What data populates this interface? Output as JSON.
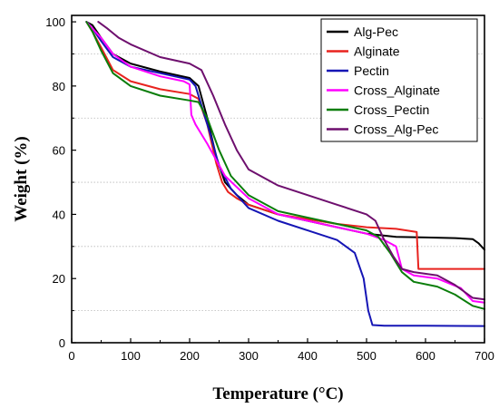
{
  "chart_data": {
    "type": "line",
    "xlabel": "Temperature (°C)",
    "ylabel": "Weight (%)",
    "xlim": [
      0,
      700
    ],
    "ylim": [
      0,
      102
    ],
    "xticks": [
      0,
      100,
      200,
      300,
      400,
      500,
      600,
      700
    ],
    "yticks": [
      0,
      20,
      40,
      60,
      80,
      100
    ],
    "dotted_gridlines_y": [
      10,
      30,
      50,
      70,
      90
    ],
    "legend_position": "top-right",
    "series": [
      {
        "name": "Alg-Pec",
        "color": "#000000",
        "x": [
          25,
          35,
          50,
          70,
          100,
          150,
          200,
          215,
          230,
          245,
          260,
          280,
          300,
          350,
          400,
          450,
          500,
          550,
          600,
          650,
          680,
          690,
          700
        ],
        "y": [
          100,
          99,
          95,
          90,
          87,
          84.5,
          82.5,
          80,
          70,
          58,
          50,
          46,
          43,
          40,
          38,
          36,
          34,
          33,
          32.8,
          32.6,
          32.3,
          31,
          29
        ]
      },
      {
        "name": "Alginate",
        "color": "#e8231f",
        "x": [
          25,
          35,
          50,
          70,
          100,
          150,
          200,
          215,
          230,
          245,
          255,
          265,
          280,
          300,
          350,
          400,
          450,
          500,
          550,
          585,
          588,
          600,
          650,
          700
        ],
        "y": [
          100,
          97,
          92,
          85,
          81.5,
          79,
          77.5,
          76,
          68,
          56,
          50,
          47,
          45,
          43,
          40,
          38.5,
          37,
          36,
          35.5,
          34.5,
          23,
          23,
          23,
          23
        ]
      },
      {
        "name": "Pectin",
        "color": "#1515b5",
        "x": [
          25,
          35,
          50,
          70,
          100,
          150,
          200,
          210,
          220,
          235,
          250,
          270,
          300,
          350,
          400,
          450,
          480,
          495,
          503,
          510,
          530,
          600,
          700
        ],
        "y": [
          100,
          98,
          94,
          89,
          86,
          84,
          82,
          80,
          74,
          65,
          55,
          48,
          42,
          38,
          35,
          32,
          28,
          20,
          10,
          5.5,
          5.3,
          5.3,
          5.2
        ]
      },
      {
        "name": "Cross_Alginate",
        "color": "#ff00ff",
        "x": [
          25,
          35,
          50,
          70,
          100,
          150,
          190,
          200,
          203,
          210,
          230,
          260,
          300,
          350,
          400,
          450,
          500,
          530,
          550,
          560,
          580,
          620,
          660,
          680,
          700
        ],
        "y": [
          100,
          98,
          95,
          90,
          86,
          83,
          81.5,
          80.5,
          71,
          68,
          62,
          52,
          45,
          40,
          38,
          36,
          34,
          32,
          30,
          23,
          21,
          20,
          17,
          13,
          12.5
        ]
      },
      {
        "name": "Cross_Pectin",
        "color": "#0a7d0a",
        "x": [
          25,
          35,
          50,
          70,
          100,
          150,
          200,
          215,
          230,
          250,
          270,
          300,
          350,
          400,
          450,
          500,
          520,
          540,
          560,
          580,
          620,
          650,
          680,
          700
        ],
        "y": [
          100,
          97,
          91,
          84,
          80,
          77,
          75.5,
          75,
          70,
          60,
          52,
          46,
          41,
          39,
          37,
          35,
          33,
          28,
          22,
          19,
          17.5,
          15,
          11.5,
          10.5
        ]
      },
      {
        "name": "Cross_Alg-Pec",
        "color": "#6e0f6e",
        "x": [
          45,
          60,
          80,
          100,
          150,
          200,
          220,
          240,
          260,
          280,
          300,
          350,
          400,
          450,
          500,
          515,
          530,
          545,
          560,
          580,
          620,
          650,
          680,
          700
        ],
        "y": [
          100,
          98,
          95,
          93,
          89,
          87,
          85,
          77,
          68,
          60,
          54,
          49,
          46,
          43,
          40,
          38,
          32,
          27,
          23,
          22,
          21,
          18,
          14,
          13.5
        ]
      }
    ]
  }
}
